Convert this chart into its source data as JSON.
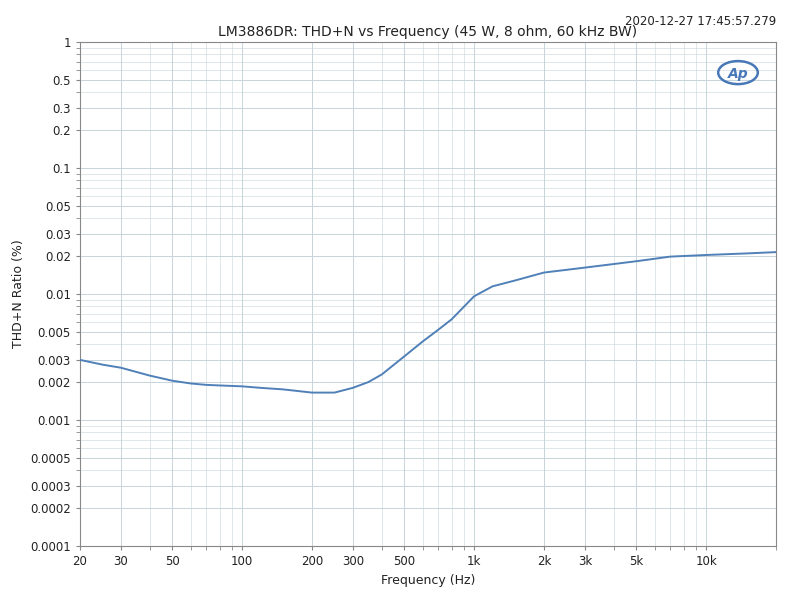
{
  "title": "LM3886DR: THD+N vs Frequency (45 W, 8 ohm, 60 kHz BW)",
  "timestamp": "2020-12-27 17:45:57.279",
  "xlabel": "Frequency (Hz)",
  "ylabel": "THD+N Ratio (%)",
  "xmin": 20,
  "xmax": 20000,
  "ymin": 0.0001,
  "ymax": 1.0,
  "line_color": "#5080b8",
  "plot_bg_color": "#ffffff",
  "fig_bg_color": "#ffffff",
  "grid_color": "#c8d4dc",
  "freq": [
    20,
    25,
    30,
    40,
    50,
    60,
    70,
    80,
    100,
    120,
    150,
    200,
    250,
    300,
    350,
    400,
    500,
    600,
    700,
    800,
    1000,
    1200,
    1500,
    2000,
    3000,
    5000,
    7000,
    10000,
    15000,
    20000
  ],
  "thd": [
    0.003,
    0.00275,
    0.0026,
    0.00225,
    0.00205,
    0.00195,
    0.0019,
    0.00188,
    0.00185,
    0.0018,
    0.00175,
    0.00165,
    0.00165,
    0.0018,
    0.002,
    0.0023,
    0.0032,
    0.0042,
    0.0052,
    0.0063,
    0.0096,
    0.0115,
    0.0128,
    0.0148,
    0.0162,
    0.0182,
    0.0198,
    0.0204,
    0.021,
    0.0215
  ],
  "xticks": [
    20,
    30,
    50,
    100,
    200,
    300,
    500,
    1000,
    2000,
    3000,
    5000,
    10000
  ],
  "xtick_labels": [
    "20",
    "30",
    "50",
    "100",
    "200",
    "300",
    "500",
    "1k",
    "2k",
    "3k",
    "5k",
    "10k"
  ],
  "yticks": [
    0.0001,
    0.0002,
    0.0003,
    0.0005,
    0.001,
    0.002,
    0.003,
    0.005,
    0.01,
    0.02,
    0.03,
    0.05,
    0.1,
    0.2,
    0.3,
    0.5,
    1.0
  ],
  "ytick_labels": [
    "0.0001",
    "0.0002",
    "0.0003",
    "0.0005",
    "0.001",
    "0.002",
    "0.003",
    "0.005",
    "0.01",
    "0.02",
    "0.03",
    "0.05",
    "0.1",
    "0.2",
    "0.3",
    "0.5",
    "1"
  ],
  "title_fontsize": 10,
  "label_fontsize": 9,
  "tick_fontsize": 8.5,
  "timestamp_fontsize": 8.5,
  "ap_logo_color": "#4878b8",
  "spine_color": "#888888",
  "text_color": "#222222"
}
